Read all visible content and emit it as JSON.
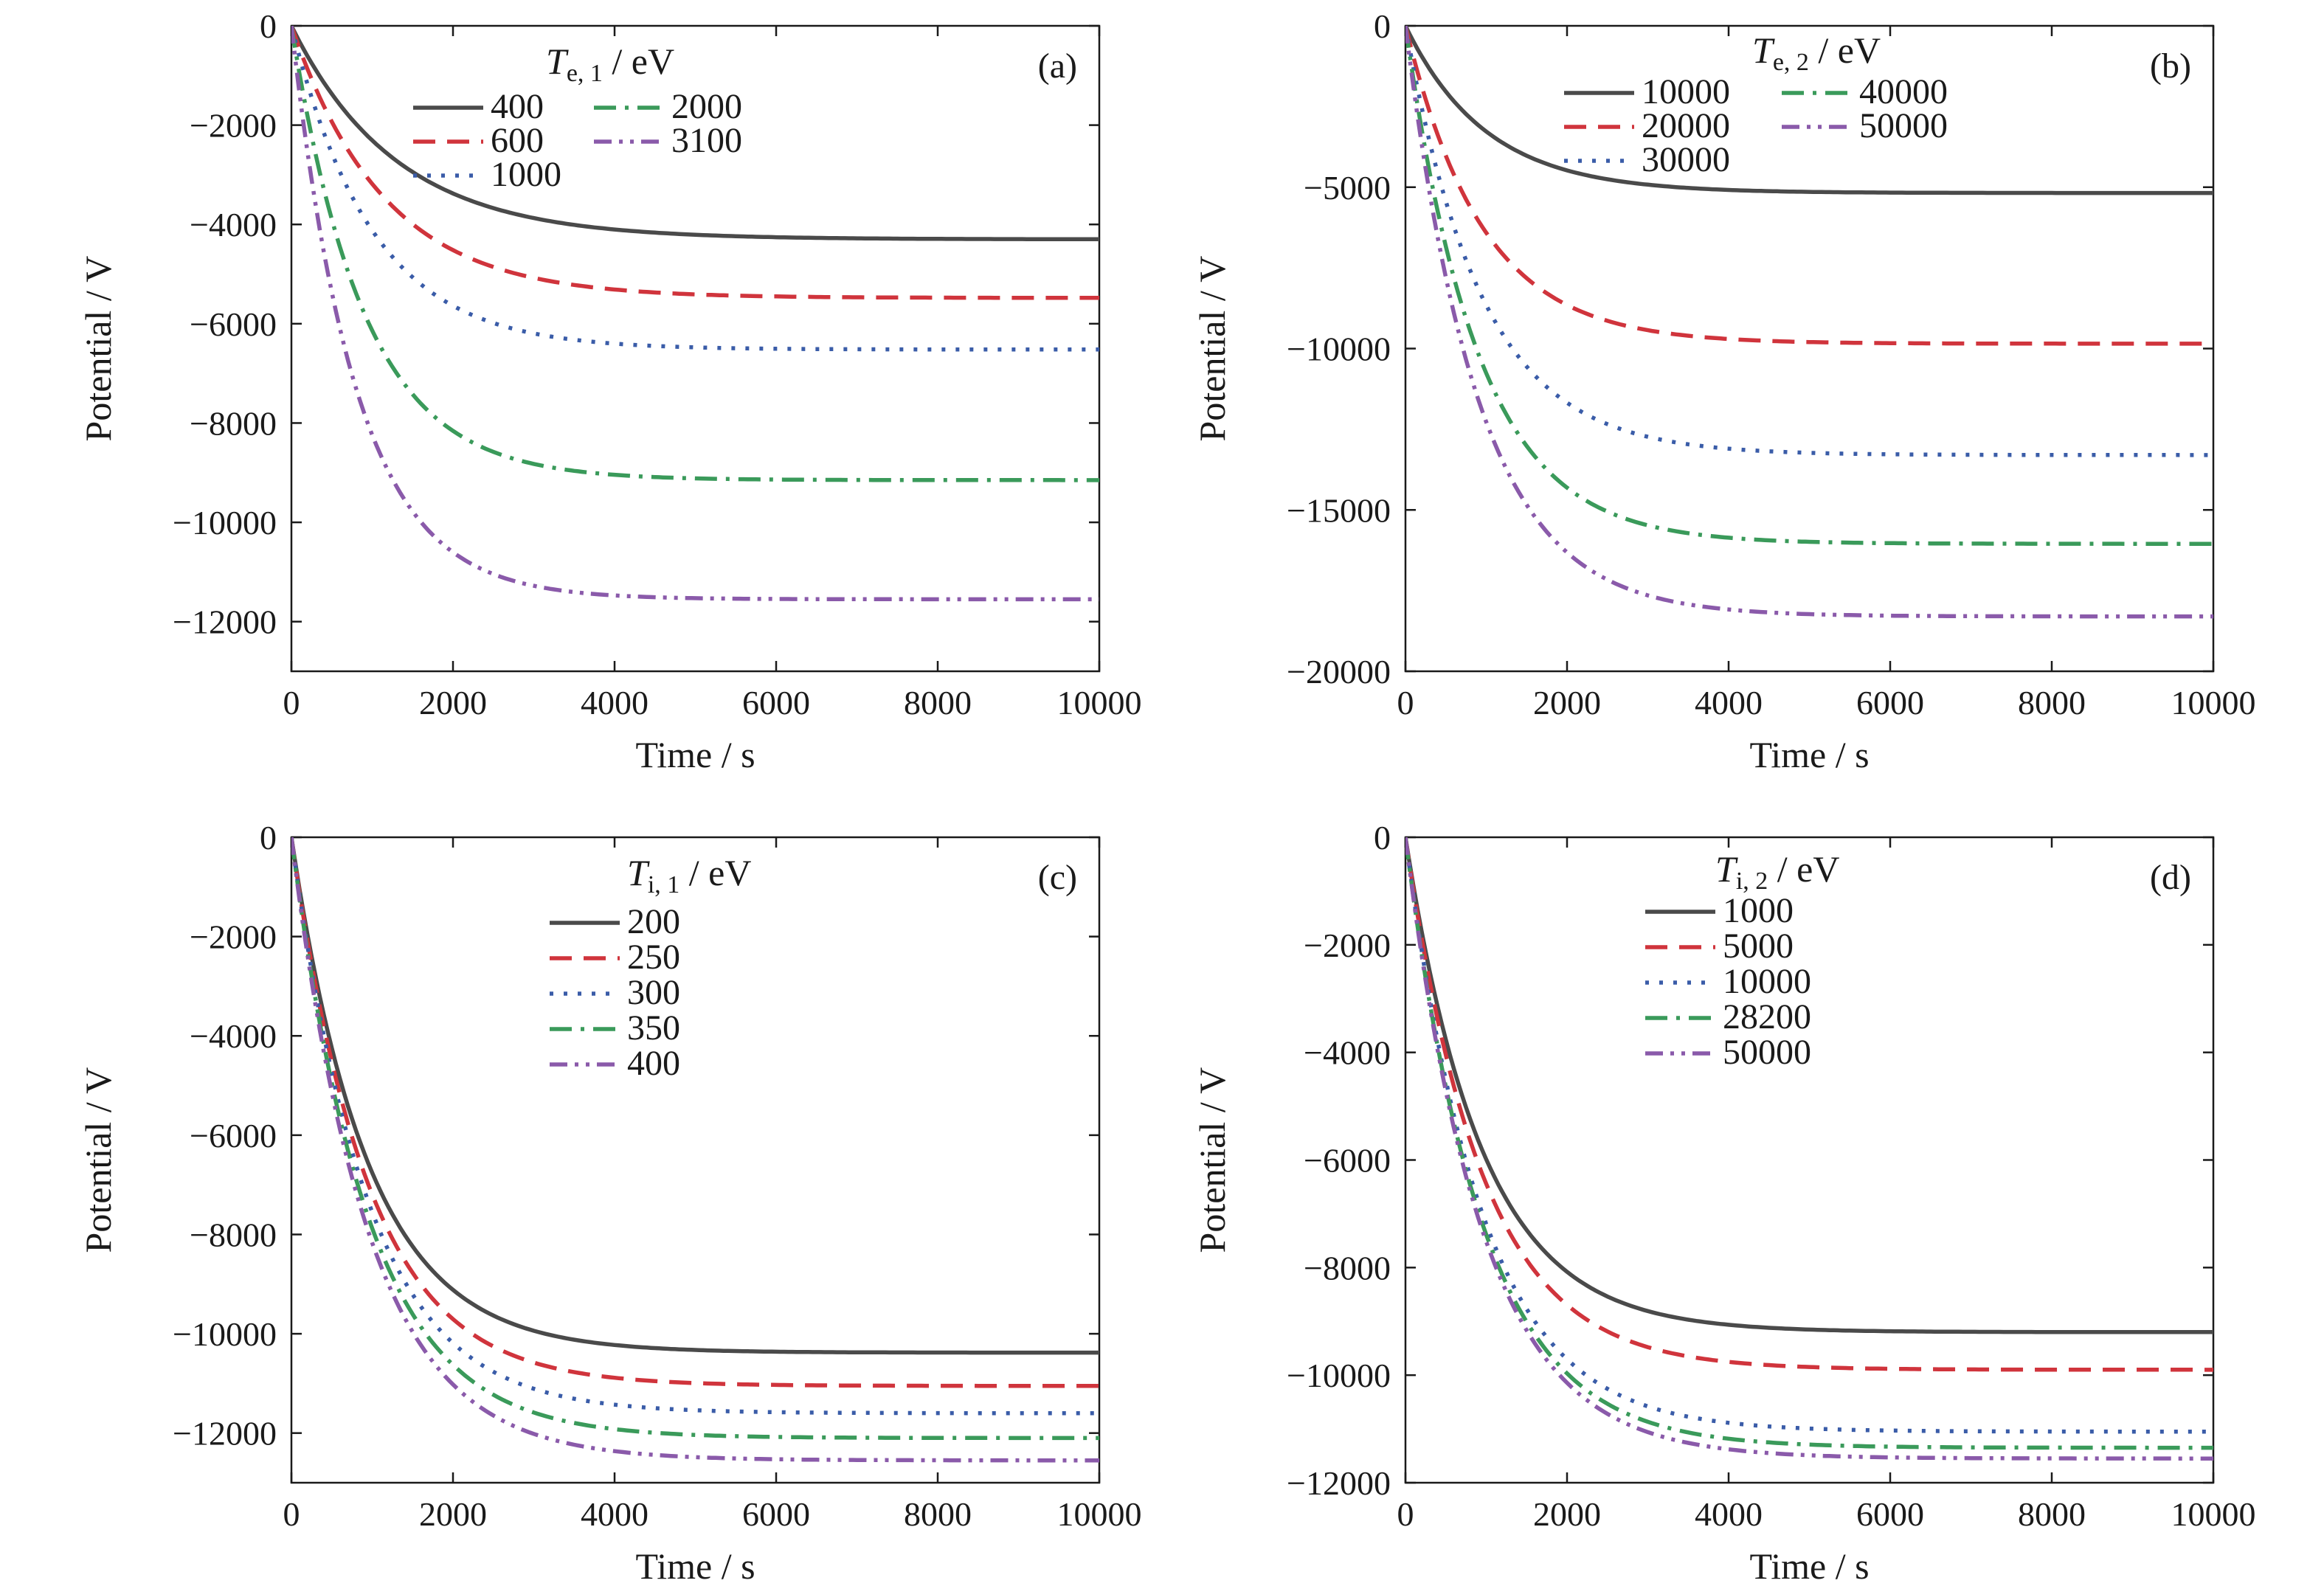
{
  "chart_data": [
    {
      "type": "line",
      "panel_label": "(a)",
      "xlabel": "Time / s",
      "ylabel": "Potential / V",
      "xlim": [
        0,
        10000
      ],
      "ylim": [
        -13000,
        0
      ],
      "xticks": [
        0,
        2000,
        4000,
        6000,
        8000,
        10000
      ],
      "yticks": [
        0,
        -2000,
        -4000,
        -6000,
        -8000,
        -10000,
        -12000
      ],
      "grid": false,
      "legend": {
        "title_symbol": "T",
        "title_sub": "e, 1",
        "title_unit": " / eV",
        "placement": "top-center",
        "columns": 2
      },
      "series": [
        {
          "name": "400",
          "color": "#4a4a4a",
          "dash": "solid",
          "final": -4300,
          "tau": 1300
        },
        {
          "name": "600",
          "color": "#d0343c",
          "dash": "dash",
          "final": -5480,
          "tau": 1150
        },
        {
          "name": "1000",
          "color": "#3a5ca8",
          "dash": "dot",
          "final": -6520,
          "tau": 1000
        },
        {
          "name": "2000",
          "color": "#3a9a5a",
          "dash": "dash-dot",
          "final": -9150,
          "tau": 900
        },
        {
          "name": "3100",
          "color": "#8a5aaa",
          "dash": "dash-dot-dot",
          "final": -11550,
          "tau": 800
        }
      ]
    },
    {
      "type": "line",
      "panel_label": "(b)",
      "xlabel": "Time / s",
      "ylabel": "Potential / V",
      "xlim": [
        0,
        10000
      ],
      "ylim": [
        -20000,
        0
      ],
      "xticks": [
        0,
        2000,
        4000,
        6000,
        8000,
        10000
      ],
      "yticks": [
        0,
        -5000,
        -10000,
        -15000,
        -20000
      ],
      "grid": false,
      "legend": {
        "title_symbol": "T",
        "title_sub": "e, 2",
        "title_unit": " / eV",
        "placement": "top-center",
        "columns": 2
      },
      "series": [
        {
          "name": "10000",
          "color": "#4a4a4a",
          "dash": "solid",
          "final": -5180,
          "tau": 1000
        },
        {
          "name": "20000",
          "color": "#d0343c",
          "dash": "dash",
          "final": -9850,
          "tau": 950
        },
        {
          "name": "30000",
          "color": "#3a5ca8",
          "dash": "dot",
          "final": -13300,
          "tau": 950
        },
        {
          "name": "40000",
          "color": "#3a9a5a",
          "dash": "dash-dot",
          "final": -16050,
          "tau": 900
        },
        {
          "name": "50000",
          "color": "#8a5aaa",
          "dash": "dash-dot-dot",
          "final": -18300,
          "tau": 900
        }
      ]
    },
    {
      "type": "line",
      "panel_label": "(c)",
      "xlabel": "Time / s",
      "ylabel": "Potential / V",
      "xlim": [
        0,
        10000
      ],
      "ylim": [
        -13000,
        0
      ],
      "xticks": [
        0,
        2000,
        4000,
        6000,
        8000,
        10000
      ],
      "yticks": [
        0,
        -2000,
        -4000,
        -6000,
        -8000,
        -10000,
        -12000
      ],
      "grid": false,
      "legend": {
        "title_symbol": "T",
        "title_sub": "i, 1",
        "title_unit": " / eV",
        "placement": "top-center",
        "columns": 1
      },
      "series": [
        {
          "name": "200",
          "color": "#4a4a4a",
          "dash": "solid",
          "final": -10380,
          "tau": 950
        },
        {
          "name": "250",
          "color": "#d0343c",
          "dash": "dash",
          "final": -11050,
          "tau": 950
        },
        {
          "name": "300",
          "color": "#3a5ca8",
          "dash": "dot",
          "final": -11600,
          "tau": 950
        },
        {
          "name": "350",
          "color": "#3a9a5a",
          "dash": "dash-dot",
          "final": -12100,
          "tau": 950
        },
        {
          "name": "400",
          "color": "#8a5aaa",
          "dash": "dash-dot-dot",
          "final": -12550,
          "tau": 950
        }
      ]
    },
    {
      "type": "line",
      "panel_label": "(d)",
      "xlabel": "Time / s",
      "ylabel": "Potential / V",
      "xlim": [
        0,
        10000
      ],
      "ylim": [
        -12000,
        0
      ],
      "xticks": [
        0,
        2000,
        4000,
        6000,
        8000,
        10000
      ],
      "yticks": [
        0,
        -2000,
        -4000,
        -6000,
        -8000,
        -10000,
        -12000
      ],
      "grid": false,
      "legend": {
        "title_symbol": "T",
        "title_sub": "i, 2",
        "title_unit": " / eV",
        "placement": "top-center",
        "columns": 1
      },
      "series": [
        {
          "name": "1000",
          "color": "#4a4a4a",
          "dash": "solid",
          "final": -9200,
          "tau": 950
        },
        {
          "name": "5000",
          "color": "#d0343c",
          "dash": "dash",
          "final": -9900,
          "tau": 950
        },
        {
          "name": "10000",
          "color": "#3a5ca8",
          "dash": "dot",
          "final": -11050,
          "tau": 950
        },
        {
          "name": "28200",
          "color": "#3a9a5a",
          "dash": "dash-dot",
          "final": -11350,
          "tau": 950
        },
        {
          "name": "50000",
          "color": "#8a5aaa",
          "dash": "dash-dot-dot",
          "final": -11550,
          "tau": 950
        }
      ]
    }
  ]
}
